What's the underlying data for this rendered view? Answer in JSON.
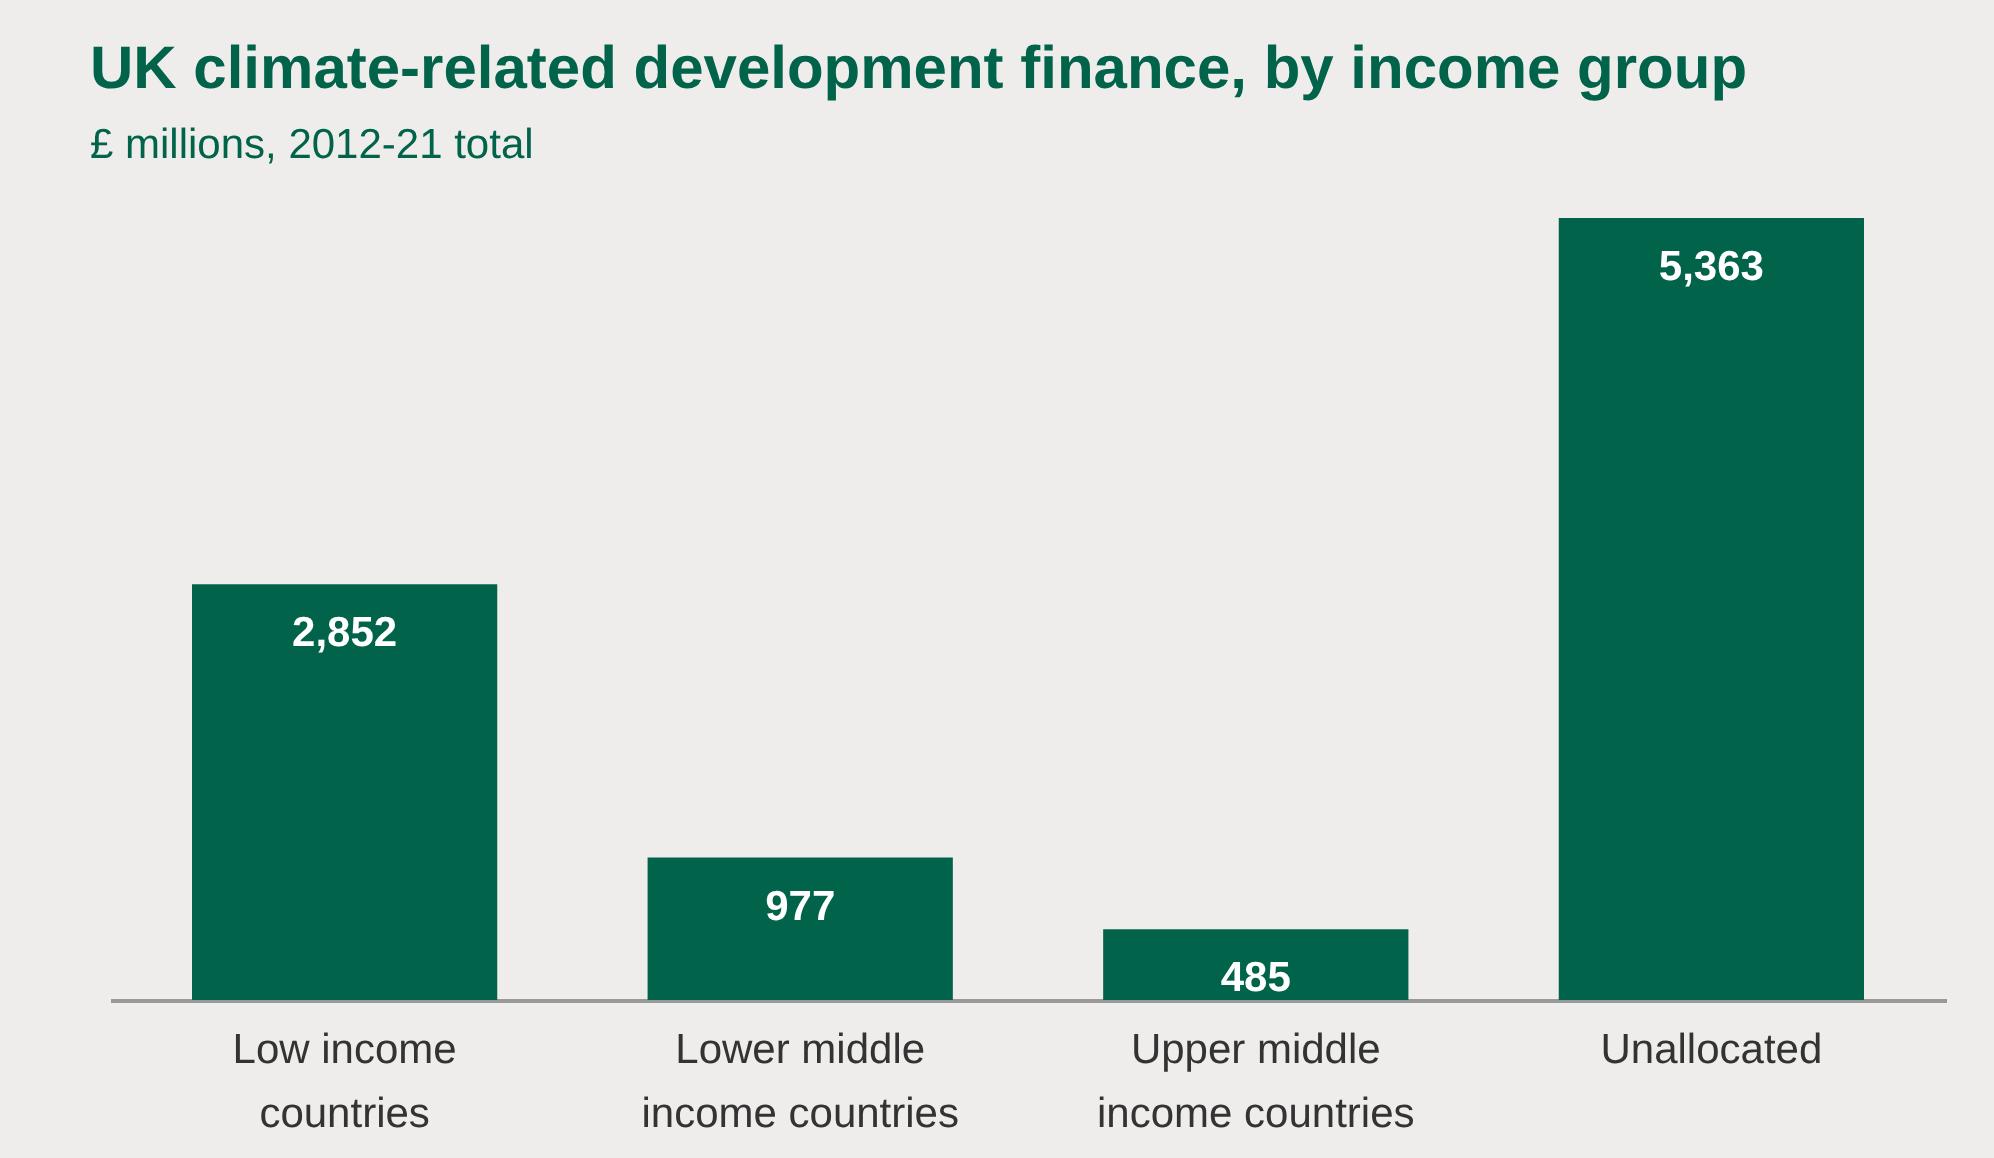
{
  "chart_data": {
    "type": "bar",
    "title": "UK climate-related development finance, by income group",
    "subtitle": "£ millions, 2012-21 total",
    "categories": [
      "Low income countries",
      "Lower middle income countries",
      "Upper middle income countries",
      "Unallocated"
    ],
    "values": [
      2852,
      977,
      485,
      5363
    ],
    "value_labels": [
      "2,852",
      "977",
      "485",
      "5,363"
    ],
    "color": "#00634a"
  }
}
